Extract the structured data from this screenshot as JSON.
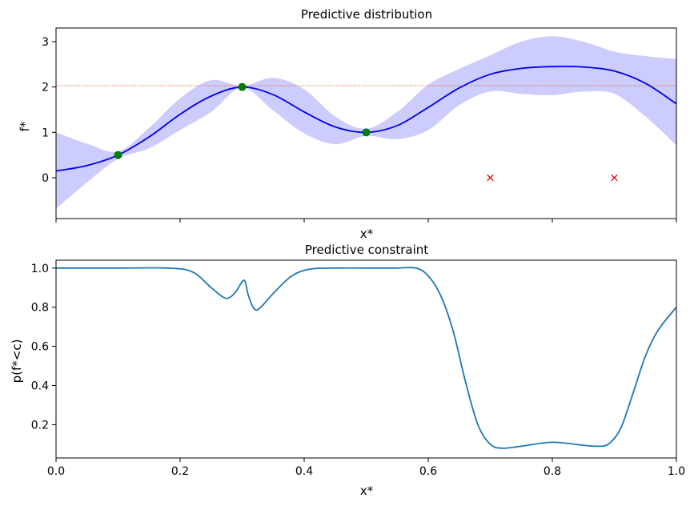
{
  "chart_data": [
    {
      "type": "line",
      "title": "Predictive distribution",
      "xlabel": "x*",
      "ylabel": "f*",
      "xlim": [
        0,
        1
      ],
      "ylim": [
        -0.9,
        3.3
      ],
      "grid": false,
      "xticks": [
        0,
        0.2,
        0.4,
        0.6,
        0.8,
        1.0
      ],
      "xtick_labels_visible": false,
      "yticks": [
        0,
        1,
        2,
        3
      ],
      "ytick_labels": [
        "0",
        "1",
        "2",
        "3"
      ],
      "mean": {
        "color": "#0000ee",
        "x": [
          0,
          0.05,
          0.1,
          0.15,
          0.2,
          0.25,
          0.3,
          0.35,
          0.4,
          0.45,
          0.5,
          0.55,
          0.6,
          0.65,
          0.7,
          0.75,
          0.8,
          0.85,
          0.9,
          0.95,
          1.0
        ],
        "y": [
          0.15,
          0.27,
          0.5,
          0.9,
          1.4,
          1.8,
          2.0,
          1.83,
          1.45,
          1.12,
          1.0,
          1.15,
          1.55,
          1.98,
          2.28,
          2.41,
          2.45,
          2.44,
          2.35,
          2.08,
          1.63
        ]
      },
      "band": {
        "color": "#ccccff",
        "upper": [
          1.0,
          0.75,
          0.58,
          1.1,
          1.75,
          2.15,
          2.02,
          2.2,
          1.95,
          1.35,
          1.08,
          1.45,
          2.05,
          2.4,
          2.7,
          3.0,
          3.12,
          3.0,
          2.78,
          2.68,
          2.62
        ],
        "lower": [
          -0.68,
          -0.1,
          0.42,
          0.65,
          1.05,
          1.45,
          1.98,
          1.48,
          0.98,
          0.74,
          0.92,
          0.85,
          1.05,
          1.6,
          1.9,
          1.85,
          1.82,
          1.9,
          1.85,
          1.35,
          0.72
        ]
      },
      "threshold": {
        "y": 2.03,
        "color": "#ee6622",
        "style": "dashed"
      },
      "observations": {
        "color": "#008000",
        "marker": "circle",
        "x": [
          0.1,
          0.3,
          0.5
        ],
        "y": [
          0.5,
          2.0,
          1.0
        ]
      },
      "constraint_violations": {
        "color": "#dd0000",
        "marker": "x",
        "x": [
          0.7,
          0.9
        ],
        "y": [
          0,
          0
        ]
      }
    },
    {
      "type": "line",
      "title": "Predictive constraint",
      "xlabel": "x*",
      "ylabel": "p(f*<c)",
      "xlim": [
        0,
        1
      ],
      "ylim": [
        0.03,
        1.04
      ],
      "grid": false,
      "xticks": [
        0,
        0.2,
        0.4,
        0.6,
        0.8,
        1.0
      ],
      "xtick_labels": [
        "0.0",
        "0.2",
        "0.4",
        "0.6",
        "0.8",
        "1.0"
      ],
      "yticks": [
        0.2,
        0.4,
        0.6,
        0.8,
        1.0
      ],
      "ytick_labels": [
        "0.2",
        "0.4",
        "0.6",
        "0.8",
        "1.0"
      ],
      "series": [
        {
          "color": "#1f77b4",
          "x": [
            0,
            0.1,
            0.18,
            0.22,
            0.25,
            0.27,
            0.28,
            0.29,
            0.3,
            0.305,
            0.31,
            0.32,
            0.33,
            0.35,
            0.38,
            0.41,
            0.45,
            0.5,
            0.55,
            0.58,
            0.6,
            0.62,
            0.64,
            0.66,
            0.68,
            0.7,
            0.72,
            0.75,
            0.8,
            0.85,
            0.87,
            0.89,
            0.91,
            0.93,
            0.95,
            0.97,
            1.0
          ],
          "y": [
            1.0,
            1.0,
            1.0,
            0.98,
            0.9,
            0.85,
            0.85,
            0.88,
            0.93,
            0.93,
            0.86,
            0.79,
            0.8,
            0.87,
            0.96,
            0.995,
            1.0,
            1.0,
            1.0,
            1.0,
            0.96,
            0.86,
            0.68,
            0.42,
            0.2,
            0.1,
            0.08,
            0.09,
            0.11,
            0.095,
            0.09,
            0.1,
            0.18,
            0.36,
            0.55,
            0.68,
            0.8
          ]
        }
      ]
    }
  ]
}
